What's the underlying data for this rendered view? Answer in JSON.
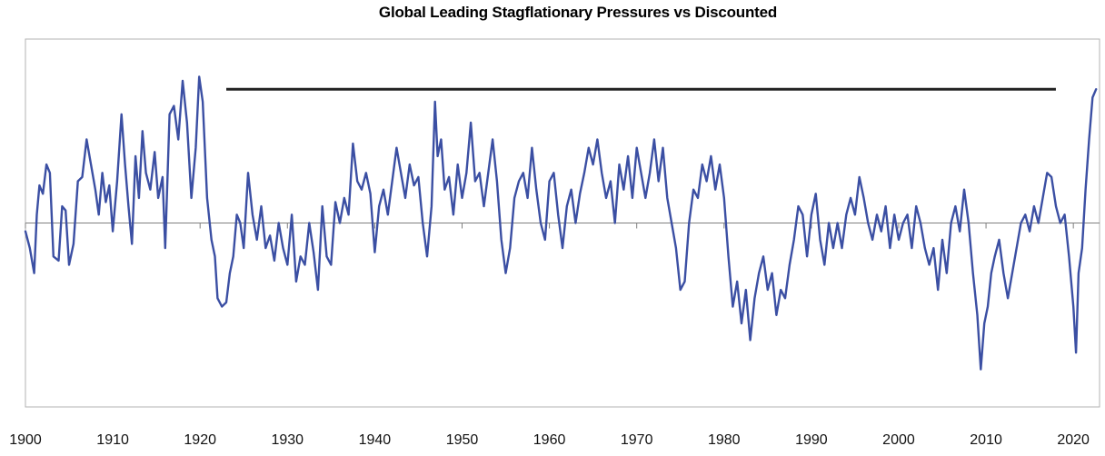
{
  "chart_data": {
    "type": "line",
    "title": "Global Leading Stagflationary Pressures vs Discounted",
    "xlabel": "",
    "ylabel": "",
    "xlim": [
      1900,
      2023
    ],
    "ylim": [
      -2.2,
      2.2
    ],
    "x_ticks": [
      "1900",
      "1910",
      "1920",
      "1930",
      "1940",
      "1950",
      "1960",
      "1970",
      "1980",
      "1990",
      "2000",
      "2010",
      "2020"
    ],
    "grid": false,
    "reference_lines": [
      {
        "kind": "zero-line",
        "y": 0,
        "color": "#7f7f7f"
      },
      {
        "kind": "horizontal-level",
        "y": 1.6,
        "x_start": 1923,
        "x_end": 2018,
        "color": "#222222"
      }
    ],
    "series": [
      {
        "color": "#3b4fa3",
        "points": [
          [
            1900.0,
            -0.1
          ],
          [
            1900.5,
            -0.3
          ],
          [
            1901.0,
            -0.6
          ],
          [
            1901.3,
            0.1
          ],
          [
            1901.6,
            0.45
          ],
          [
            1902.0,
            0.35
          ],
          [
            1902.4,
            0.7
          ],
          [
            1902.8,
            0.6
          ],
          [
            1903.2,
            -0.4
          ],
          [
            1903.8,
            -0.45
          ],
          [
            1904.2,
            0.2
          ],
          [
            1904.6,
            0.15
          ],
          [
            1905.0,
            -0.5
          ],
          [
            1905.5,
            -0.25
          ],
          [
            1906.0,
            0.5
          ],
          [
            1906.5,
            0.55
          ],
          [
            1907.0,
            1.0
          ],
          [
            1907.5,
            0.7
          ],
          [
            1908.0,
            0.4
          ],
          [
            1908.4,
            0.1
          ],
          [
            1908.8,
            0.6
          ],
          [
            1909.2,
            0.25
          ],
          [
            1909.6,
            0.45
          ],
          [
            1910.0,
            -0.1
          ],
          [
            1910.5,
            0.5
          ],
          [
            1911.0,
            1.3
          ],
          [
            1911.4,
            0.7
          ],
          [
            1911.8,
            0.2
          ],
          [
            1912.2,
            -0.25
          ],
          [
            1912.6,
            0.8
          ],
          [
            1913.0,
            0.3
          ],
          [
            1913.4,
            1.1
          ],
          [
            1913.8,
            0.6
          ],
          [
            1914.3,
            0.4
          ],
          [
            1914.8,
            0.85
          ],
          [
            1915.2,
            0.3
          ],
          [
            1915.7,
            0.55
          ],
          [
            1916.0,
            -0.3
          ],
          [
            1916.5,
            1.3
          ],
          [
            1917.0,
            1.4
          ],
          [
            1917.5,
            1.0
          ],
          [
            1918.0,
            1.7
          ],
          [
            1918.5,
            1.2
          ],
          [
            1919.0,
            0.3
          ],
          [
            1919.5,
            0.9
          ],
          [
            1919.9,
            1.75
          ],
          [
            1920.3,
            1.45
          ],
          [
            1920.8,
            0.3
          ],
          [
            1921.3,
            -0.2
          ],
          [
            1921.7,
            -0.4
          ],
          [
            1922.0,
            -0.9
          ],
          [
            1922.5,
            -1.0
          ],
          [
            1923.0,
            -0.95
          ],
          [
            1923.4,
            -0.6
          ],
          [
            1923.8,
            -0.4
          ],
          [
            1924.2,
            0.1
          ],
          [
            1924.6,
            0.0
          ],
          [
            1925.0,
            -0.3
          ],
          [
            1925.5,
            0.6
          ],
          [
            1926.0,
            0.1
          ],
          [
            1926.5,
            -0.2
          ],
          [
            1927.0,
            0.2
          ],
          [
            1927.5,
            -0.3
          ],
          [
            1928.0,
            -0.15
          ],
          [
            1928.5,
            -0.45
          ],
          [
            1929.0,
            0.0
          ],
          [
            1929.5,
            -0.3
          ],
          [
            1930.0,
            -0.5
          ],
          [
            1930.5,
            0.1
          ],
          [
            1931.0,
            -0.7
          ],
          [
            1931.5,
            -0.4
          ],
          [
            1932.0,
            -0.5
          ],
          [
            1932.5,
            0.0
          ],
          [
            1933.0,
            -0.35
          ],
          [
            1933.5,
            -0.8
          ],
          [
            1934.0,
            0.2
          ],
          [
            1934.5,
            -0.4
          ],
          [
            1935.0,
            -0.5
          ],
          [
            1935.5,
            0.25
          ],
          [
            1936.0,
            0.0
          ],
          [
            1936.5,
            0.3
          ],
          [
            1937.0,
            0.1
          ],
          [
            1937.5,
            0.95
          ],
          [
            1938.0,
            0.5
          ],
          [
            1938.5,
            0.4
          ],
          [
            1939.0,
            0.6
          ],
          [
            1939.5,
            0.35
          ],
          [
            1940.0,
            -0.35
          ],
          [
            1940.5,
            0.2
          ],
          [
            1941.0,
            0.4
          ],
          [
            1941.5,
            0.1
          ],
          [
            1942.0,
            0.5
          ],
          [
            1942.5,
            0.9
          ],
          [
            1943.0,
            0.6
          ],
          [
            1943.5,
            0.3
          ],
          [
            1944.0,
            0.7
          ],
          [
            1944.5,
            0.45
          ],
          [
            1945.0,
            0.55
          ],
          [
            1945.5,
            0.0
          ],
          [
            1946.0,
            -0.4
          ],
          [
            1946.5,
            0.2
          ],
          [
            1946.9,
            1.45
          ],
          [
            1947.2,
            0.8
          ],
          [
            1947.6,
            1.0
          ],
          [
            1948.0,
            0.4
          ],
          [
            1948.5,
            0.55
          ],
          [
            1949.0,
            0.1
          ],
          [
            1949.5,
            0.7
          ],
          [
            1950.0,
            0.3
          ],
          [
            1950.5,
            0.6
          ],
          [
            1951.0,
            1.2
          ],
          [
            1951.5,
            0.5
          ],
          [
            1952.0,
            0.6
          ],
          [
            1952.5,
            0.2
          ],
          [
            1953.0,
            0.6
          ],
          [
            1953.5,
            1.0
          ],
          [
            1954.0,
            0.5
          ],
          [
            1954.5,
            -0.2
          ],
          [
            1955.0,
            -0.6
          ],
          [
            1955.5,
            -0.3
          ],
          [
            1956.0,
            0.3
          ],
          [
            1956.5,
            0.5
          ],
          [
            1957.0,
            0.6
          ],
          [
            1957.5,
            0.3
          ],
          [
            1958.0,
            0.9
          ],
          [
            1958.5,
            0.4
          ],
          [
            1959.0,
            0.0
          ],
          [
            1959.5,
            -0.2
          ],
          [
            1960.0,
            0.5
          ],
          [
            1960.5,
            0.6
          ],
          [
            1961.0,
            0.1
          ],
          [
            1961.5,
            -0.3
          ],
          [
            1962.0,
            0.2
          ],
          [
            1962.5,
            0.4
          ],
          [
            1963.0,
            0.0
          ],
          [
            1963.5,
            0.35
          ],
          [
            1964.0,
            0.6
          ],
          [
            1964.5,
            0.9
          ],
          [
            1965.0,
            0.7
          ],
          [
            1965.5,
            1.0
          ],
          [
            1966.0,
            0.6
          ],
          [
            1966.5,
            0.3
          ],
          [
            1967.0,
            0.5
          ],
          [
            1967.5,
            0.0
          ],
          [
            1968.0,
            0.7
          ],
          [
            1968.5,
            0.4
          ],
          [
            1969.0,
            0.8
          ],
          [
            1969.5,
            0.3
          ],
          [
            1970.0,
            0.9
          ],
          [
            1970.5,
            0.6
          ],
          [
            1971.0,
            0.3
          ],
          [
            1971.5,
            0.6
          ],
          [
            1972.0,
            1.0
          ],
          [
            1972.5,
            0.5
          ],
          [
            1973.0,
            0.9
          ],
          [
            1973.5,
            0.3
          ],
          [
            1974.0,
            0.0
          ],
          [
            1974.5,
            -0.3
          ],
          [
            1975.0,
            -0.8
          ],
          [
            1975.5,
            -0.7
          ],
          [
            1976.0,
            0.0
          ],
          [
            1976.5,
            0.4
          ],
          [
            1977.0,
            0.3
          ],
          [
            1977.5,
            0.7
          ],
          [
            1978.0,
            0.5
          ],
          [
            1978.5,
            0.8
          ],
          [
            1979.0,
            0.4
          ],
          [
            1979.5,
            0.7
          ],
          [
            1980.0,
            0.3
          ],
          [
            1980.5,
            -0.4
          ],
          [
            1981.0,
            -1.0
          ],
          [
            1981.5,
            -0.7
          ],
          [
            1982.0,
            -1.2
          ],
          [
            1982.5,
            -0.8
          ],
          [
            1983.0,
            -1.4
          ],
          [
            1983.5,
            -0.9
          ],
          [
            1984.0,
            -0.6
          ],
          [
            1984.5,
            -0.4
          ],
          [
            1985.0,
            -0.8
          ],
          [
            1985.5,
            -0.6
          ],
          [
            1986.0,
            -1.1
          ],
          [
            1986.5,
            -0.8
          ],
          [
            1987.0,
            -0.9
          ],
          [
            1987.5,
            -0.5
          ],
          [
            1988.0,
            -0.2
          ],
          [
            1988.5,
            0.2
          ],
          [
            1989.0,
            0.1
          ],
          [
            1989.5,
            -0.4
          ],
          [
            1990.0,
            0.1
          ],
          [
            1990.5,
            0.35
          ],
          [
            1991.0,
            -0.2
          ],
          [
            1991.5,
            -0.5
          ],
          [
            1992.0,
            0.0
          ],
          [
            1992.5,
            -0.3
          ],
          [
            1993.0,
            0.0
          ],
          [
            1993.5,
            -0.3
          ],
          [
            1994.0,
            0.1
          ],
          [
            1994.5,
            0.3
          ],
          [
            1995.0,
            0.1
          ],
          [
            1995.5,
            0.55
          ],
          [
            1996.0,
            0.3
          ],
          [
            1996.5,
            0.0
          ],
          [
            1997.0,
            -0.2
          ],
          [
            1997.5,
            0.1
          ],
          [
            1998.0,
            -0.1
          ],
          [
            1998.5,
            0.2
          ],
          [
            1999.0,
            -0.3
          ],
          [
            1999.5,
            0.1
          ],
          [
            2000.0,
            -0.2
          ],
          [
            2000.5,
            0.0
          ],
          [
            2001.0,
            0.1
          ],
          [
            2001.5,
            -0.3
          ],
          [
            2002.0,
            0.2
          ],
          [
            2002.5,
            0.0
          ],
          [
            2003.0,
            -0.3
          ],
          [
            2003.5,
            -0.5
          ],
          [
            2004.0,
            -0.3
          ],
          [
            2004.5,
            -0.8
          ],
          [
            2005.0,
            -0.2
          ],
          [
            2005.5,
            -0.6
          ],
          [
            2006.0,
            0.0
          ],
          [
            2006.5,
            0.2
          ],
          [
            2007.0,
            -0.1
          ],
          [
            2007.5,
            0.4
          ],
          [
            2008.0,
            0.0
          ],
          [
            2008.5,
            -0.6
          ],
          [
            2009.0,
            -1.1
          ],
          [
            2009.4,
            -1.75
          ],
          [
            2009.8,
            -1.2
          ],
          [
            2010.2,
            -1.0
          ],
          [
            2010.6,
            -0.6
          ],
          [
            2011.0,
            -0.4
          ],
          [
            2011.5,
            -0.2
          ],
          [
            2012.0,
            -0.6
          ],
          [
            2012.5,
            -0.9
          ],
          [
            2013.0,
            -0.6
          ],
          [
            2013.5,
            -0.3
          ],
          [
            2014.0,
            0.0
          ],
          [
            2014.5,
            0.1
          ],
          [
            2015.0,
            -0.1
          ],
          [
            2015.5,
            0.2
          ],
          [
            2016.0,
            0.0
          ],
          [
            2016.5,
            0.3
          ],
          [
            2017.0,
            0.6
          ],
          [
            2017.5,
            0.55
          ],
          [
            2018.0,
            0.2
          ],
          [
            2018.5,
            0.0
          ],
          [
            2019.0,
            0.1
          ],
          [
            2019.5,
            -0.4
          ],
          [
            2020.0,
            -1.0
          ],
          [
            2020.3,
            -1.55
          ],
          [
            2020.6,
            -0.6
          ],
          [
            2021.0,
            -0.3
          ],
          [
            2021.4,
            0.4
          ],
          [
            2021.8,
            1.0
          ],
          [
            2022.2,
            1.5
          ],
          [
            2022.6,
            1.6
          ]
        ]
      }
    ]
  }
}
